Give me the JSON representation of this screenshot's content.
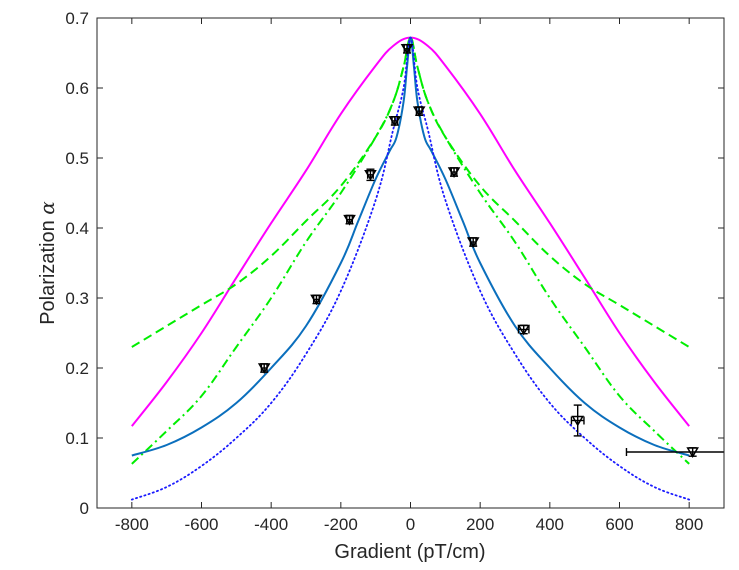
{
  "chart_data": {
    "type": "line",
    "title": "",
    "xlabel": "Gradient (pT/cm)",
    "ylabel_text": "Polarization",
    "ylabel_symbol": "α",
    "xlim": [
      -900,
      900
    ],
    "ylim": [
      0,
      0.7
    ],
    "xticks": [
      -800,
      -600,
      -400,
      -200,
      0,
      200,
      400,
      600,
      800
    ],
    "yticks": [
      0,
      0.1,
      0.2,
      0.3,
      0.4,
      0.5,
      0.6,
      0.7
    ],
    "xtick_labels": [
      "-800",
      "-600",
      "-400",
      "-200",
      "0",
      "200",
      "400",
      "600",
      "800"
    ],
    "ytick_labels": [
      "0",
      "0.1",
      "0.2",
      "0.3",
      "0.4",
      "0.5",
      "0.6",
      "0.7"
    ],
    "grid": false,
    "legend": "none",
    "series": [
      {
        "name": "magenta-solid",
        "style": "solid",
        "color": "#ff00ff",
        "x": [
          -800,
          -700,
          -600,
          -500,
          -400,
          -300,
          -200,
          -100,
          -50,
          0,
          50,
          100,
          200,
          300,
          400,
          500,
          600,
          700,
          800
        ],
        "y": [
          0.117,
          0.18,
          0.25,
          0.329,
          0.407,
          0.482,
          0.563,
          0.632,
          0.66,
          0.672,
          0.66,
          0.632,
          0.563,
          0.482,
          0.407,
          0.329,
          0.25,
          0.18,
          0.117
        ]
      },
      {
        "name": "green-dashed",
        "style": "dashed",
        "color": "#00ee00",
        "x": [
          -800,
          -700,
          -600,
          -500,
          -400,
          -300,
          -200,
          -100,
          -50,
          -20,
          0,
          20,
          50,
          100,
          200,
          300,
          400,
          500,
          600,
          700,
          800
        ],
        "y": [
          0.23,
          0.26,
          0.29,
          0.32,
          0.36,
          0.41,
          0.46,
          0.53,
          0.58,
          0.63,
          0.672,
          0.63,
          0.58,
          0.53,
          0.46,
          0.41,
          0.36,
          0.32,
          0.29,
          0.26,
          0.23
        ]
      },
      {
        "name": "green-dashdot",
        "style": "dashdot",
        "color": "#00ee00",
        "x": [
          -800,
          -700,
          -600,
          -500,
          -400,
          -300,
          -200,
          -100,
          -50,
          -20,
          0,
          20,
          50,
          100,
          200,
          300,
          400,
          500,
          600,
          700,
          800
        ],
        "y": [
          0.063,
          0.11,
          0.16,
          0.23,
          0.3,
          0.38,
          0.45,
          0.53,
          0.58,
          0.63,
          0.672,
          0.63,
          0.58,
          0.53,
          0.45,
          0.38,
          0.3,
          0.23,
          0.16,
          0.11,
          0.063
        ]
      },
      {
        "name": "blue-solid",
        "style": "solid",
        "color": "#0b6fbd",
        "x": [
          -800,
          -700,
          -600,
          -500,
          -400,
          -300,
          -200,
          -150,
          -100,
          -60,
          -40,
          -20,
          -10,
          0,
          10,
          20,
          40,
          60,
          100,
          150,
          200,
          300,
          400,
          500,
          600,
          700,
          800
        ],
        "y": [
          0.075,
          0.09,
          0.115,
          0.15,
          0.2,
          0.26,
          0.35,
          0.41,
          0.47,
          0.51,
          0.53,
          0.58,
          0.63,
          0.672,
          0.63,
          0.58,
          0.53,
          0.51,
          0.47,
          0.41,
          0.35,
          0.26,
          0.2,
          0.15,
          0.115,
          0.09,
          0.075
        ]
      },
      {
        "name": "blue-dotted",
        "style": "dotted",
        "color": "#1a1aff",
        "x": [
          -800,
          -700,
          -600,
          -500,
          -400,
          -300,
          -200,
          -100,
          -50,
          -20,
          0,
          20,
          50,
          100,
          200,
          300,
          400,
          500,
          600,
          700,
          800
        ],
        "y": [
          0.012,
          0.03,
          0.06,
          0.1,
          0.15,
          0.22,
          0.31,
          0.44,
          0.54,
          0.6,
          0.672,
          0.6,
          0.54,
          0.44,
          0.31,
          0.22,
          0.15,
          0.1,
          0.06,
          0.03,
          0.012
        ]
      }
    ],
    "points": {
      "name": "measured",
      "marker": "triangle-down",
      "color": "#000000",
      "data": [
        {
          "x": -420,
          "y": 0.2,
          "xerr": 8,
          "yerr": 0.006
        },
        {
          "x": -270,
          "y": 0.298,
          "xerr": 8,
          "yerr": 0.006
        },
        {
          "x": -175,
          "y": 0.412,
          "xerr": 8,
          "yerr": 0.006
        },
        {
          "x": -115,
          "y": 0.476,
          "xerr": 8,
          "yerr": 0.008
        },
        {
          "x": -45,
          "y": 0.553,
          "xerr": 8,
          "yerr": 0.006
        },
        {
          "x": -10,
          "y": 0.656,
          "xerr": 8,
          "yerr": 0.006
        },
        {
          "x": 25,
          "y": 0.567,
          "xerr": 8,
          "yerr": 0.006
        },
        {
          "x": 125,
          "y": 0.48,
          "xerr": 8,
          "yerr": 0.006
        },
        {
          "x": 180,
          "y": 0.38,
          "xerr": 8,
          "yerr": 0.006
        },
        {
          "x": 325,
          "y": 0.255,
          "xerr": 15,
          "yerr": 0.006
        },
        {
          "x": 480,
          "y": 0.125,
          "xerr": 18,
          "yerr": 0.022
        },
        {
          "x": 810,
          "y": 0.08,
          "xerr": 190,
          "yerr": 0.006
        }
      ]
    }
  }
}
